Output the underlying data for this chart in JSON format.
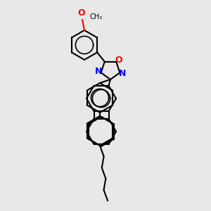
{
  "background_color": "#e8e8e8",
  "bond_lw": 1.5,
  "black": "#000000",
  "blue": "#0000ff",
  "red": "#ff0000",
  "xlim": [
    0,
    10
  ],
  "ylim": [
    -1,
    14
  ],
  "figsize": [
    3.0,
    3.0
  ],
  "dpi": 100
}
